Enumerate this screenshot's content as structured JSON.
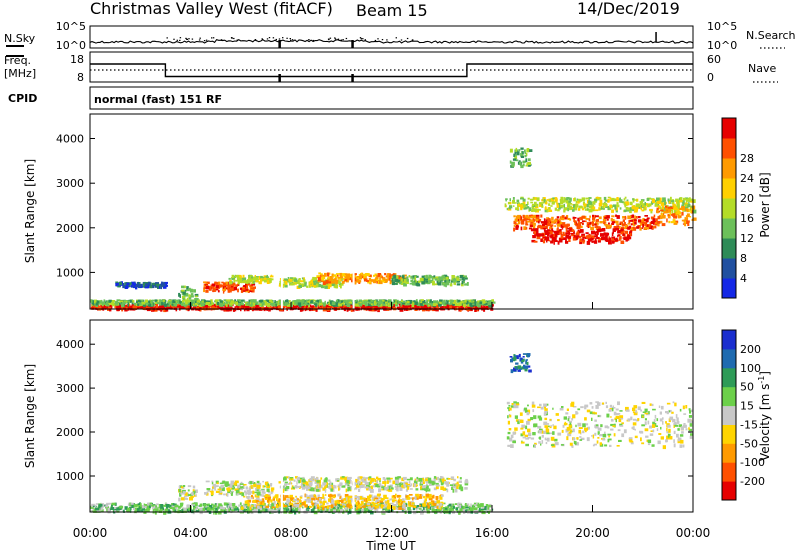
{
  "header": {
    "title": "Christmas Valley West (fitACF)",
    "beam": "Beam 15",
    "date": "14/Dec/2019"
  },
  "colors": {
    "power": [
      "#1428e6",
      "#2050a0",
      "#2e8b57",
      "#6cc05a",
      "#b4dc28",
      "#ffd000",
      "#ff9a00",
      "#ff5000",
      "#e60000"
    ],
    "velocity": [
      "#e60000",
      "#ff5000",
      "#ff9a00",
      "#ffd400",
      "#c8c8c8",
      "#6cd04a",
      "#2e9b57",
      "#1f6bb0",
      "#1a2ecf"
    ]
  },
  "chart_data": [
    {
      "type": "line",
      "panel": "noise",
      "left_label": "N.Sky",
      "right_label": "N.Search",
      "yticks_left": [
        "10^5",
        "10^0"
      ],
      "yticks_right": [
        "10^5",
        "10^0"
      ]
    },
    {
      "type": "line",
      "panel": "frequency_nave",
      "left_label": "Freq. [MHz]",
      "left_label_1": "Freq.",
      "left_label_2": "[MHz]",
      "right_label": "Nave",
      "yticks_left": [
        "18",
        "8"
      ],
      "yticks_right": [
        "60",
        "0"
      ],
      "series": [
        {
          "name": "Freq.",
          "x": [
            0,
            3,
            3,
            15,
            15,
            24
          ],
          "y": [
            15.5,
            15.5,
            10.3,
            10.3,
            15.5,
            15.5
          ]
        }
      ],
      "cpid_label": "CPID",
      "cpid_text": "normal (fast) 151 RF"
    },
    {
      "type": "heatmap",
      "panel": "power",
      "ylabel": "Slant Range [km]",
      "yticks": [
        "1000",
        "2000",
        "3000",
        "4000"
      ],
      "ylim": [
        180,
        4550
      ],
      "xlim": [
        0,
        24
      ],
      "colorbar_label": "Power [dB]",
      "colorbar_ticks": [
        "4",
        "8",
        "12",
        "16",
        "20",
        "24",
        "28"
      ],
      "regions": [
        {
          "t": [
            0,
            16
          ],
          "r": [
            200,
            300
          ],
          "level": 8
        },
        {
          "t": [
            0,
            16
          ],
          "r": [
            300,
            400
          ],
          "level": 3
        },
        {
          "t": [
            1,
            3
          ],
          "r": [
            700,
            800
          ],
          "level": 1
        },
        {
          "t": [
            3.5,
            4.2
          ],
          "r": [
            380,
            720
          ],
          "level": 3
        },
        {
          "t": [
            4.5,
            6.5
          ],
          "r": [
            600,
            800
          ],
          "level": 7
        },
        {
          "t": [
            5.5,
            7.2
          ],
          "r": [
            800,
            950
          ],
          "level": 4
        },
        {
          "t": [
            7.5,
            10
          ],
          "r": [
            700,
            900
          ],
          "level": 4
        },
        {
          "t": [
            9,
            12.5
          ],
          "r": [
            800,
            1000
          ],
          "level": 6
        },
        {
          "t": [
            12,
            15
          ],
          "r": [
            750,
            950
          ],
          "level": 3
        },
        {
          "t": [
            16.7,
            17.5
          ],
          "r": [
            3400,
            3800
          ],
          "level": 3
        },
        {
          "t": [
            16.5,
            24
          ],
          "r": [
            2400,
            2700
          ],
          "level": 4
        },
        {
          "t": [
            16.8,
            22.5
          ],
          "r": [
            2000,
            2300
          ],
          "level": 7
        },
        {
          "t": [
            17.5,
            21.5
          ],
          "r": [
            1700,
            2000
          ],
          "level": 8
        },
        {
          "t": [
            22.5,
            24
          ],
          "r": [
            2100,
            2500
          ],
          "level": 6
        }
      ]
    },
    {
      "type": "heatmap",
      "panel": "velocity",
      "ylabel": "Slant Range [km]",
      "yticks": [
        "1000",
        "2000",
        "3000",
        "4000"
      ],
      "ylim": [
        180,
        4550
      ],
      "xlim": [
        0,
        24
      ],
      "xlabel": "Time UT",
      "xticks": [
        "00:00",
        "04:00",
        "08:00",
        "12:00",
        "16:00",
        "20:00",
        "00:00"
      ],
      "colorbar_label": "Velocity [m s-1]",
      "colorbar_label_main": "Velocity [m s",
      "colorbar_label_sup": "-1",
      "colorbar_label_end": "]",
      "colorbar_ticks": [
        "-200",
        "-100",
        "-50",
        "-15",
        "15",
        "50",
        "100",
        "200"
      ],
      "regions": [
        {
          "t": [
            0,
            16
          ],
          "r": [
            200,
            400
          ],
          "level": 5
        },
        {
          "t": [
            6,
            14
          ],
          "r": [
            300,
            600
          ],
          "level": 3
        },
        {
          "t": [
            3.5,
            4.2
          ],
          "r": [
            500,
            800
          ],
          "level": 4
        },
        {
          "t": [
            4.5,
            7.2
          ],
          "r": [
            600,
            900
          ],
          "level": 4
        },
        {
          "t": [
            7.5,
            15
          ],
          "r": [
            700,
            1000
          ],
          "level": 4
        },
        {
          "t": [
            16.7,
            17.5
          ],
          "r": [
            3400,
            3800
          ],
          "level": 7
        },
        {
          "t": [
            16.5,
            24
          ],
          "r": [
            1700,
            2700
          ],
          "level": 4
        }
      ]
    }
  ]
}
